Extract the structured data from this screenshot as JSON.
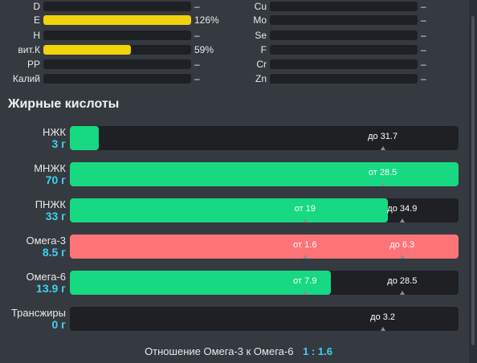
{
  "vitamins_left": [
    {
      "label": "D",
      "value": "–",
      "fill_percent": 0
    },
    {
      "label": "E",
      "value": "126%",
      "fill_percent": 100
    },
    {
      "label": "Н",
      "value": "–",
      "fill_percent": 0
    },
    {
      "label": "вит.К",
      "value": "59%",
      "fill_percent": 59
    },
    {
      "label": "PP",
      "value": "–",
      "fill_percent": 0
    },
    {
      "label": "Калий",
      "value": "–",
      "fill_percent": 0
    }
  ],
  "minerals_right": [
    {
      "label": "Cu",
      "value": "–"
    },
    {
      "label": "Mo",
      "value": "–"
    },
    {
      "label": "Se",
      "value": "–"
    },
    {
      "label": "F",
      "value": "–"
    },
    {
      "label": "Cr",
      "value": "–"
    },
    {
      "label": "Zn",
      "value": "–"
    }
  ],
  "fatty_acids": {
    "title": "Жирные кислоты",
    "rows": [
      {
        "name": "НЖК",
        "amount": "3 г",
        "fill_percent": 7.4,
        "fill_color": "green",
        "markers": [
          {
            "text": "до 31.7",
            "pos_percent": 80.5
          }
        ]
      },
      {
        "name": "МНЖК",
        "amount": "70 г",
        "fill_percent": 100,
        "fill_color": "green",
        "markers": [
          {
            "text": "от 28.5",
            "pos_percent": 80.5
          }
        ]
      },
      {
        "name": "ПНЖК",
        "amount": "33 г",
        "fill_percent": 81.8,
        "fill_color": "green",
        "markers": [
          {
            "text": "от 19",
            "pos_percent": 60.5
          },
          {
            "text": "до 34.9",
            "pos_percent": 85.5
          }
        ]
      },
      {
        "name": "Омега-3",
        "amount": "8.5 г",
        "fill_percent": 100,
        "fill_color": "red",
        "markers": [
          {
            "text": "от 1.6",
            "pos_percent": 60.5
          },
          {
            "text": "до 6.3",
            "pos_percent": 85.5
          }
        ]
      },
      {
        "name": "Омега-6",
        "amount": "13.9 г",
        "fill_percent": 67.1,
        "fill_color": "green",
        "markers": [
          {
            "text": "от 7.9",
            "pos_percent": 60.5
          },
          {
            "text": "до 28.5",
            "pos_percent": 85.5
          }
        ]
      },
      {
        "name": "Трансжиры",
        "amount": "0 г",
        "fill_percent": 0,
        "fill_color": "green",
        "markers": [
          {
            "text": "до 3.2",
            "pos_percent": 80.5
          }
        ]
      }
    ]
  },
  "ratio": {
    "label": "Отношение Омега-3 к Омега-6",
    "value": "1 : 1.6"
  }
}
